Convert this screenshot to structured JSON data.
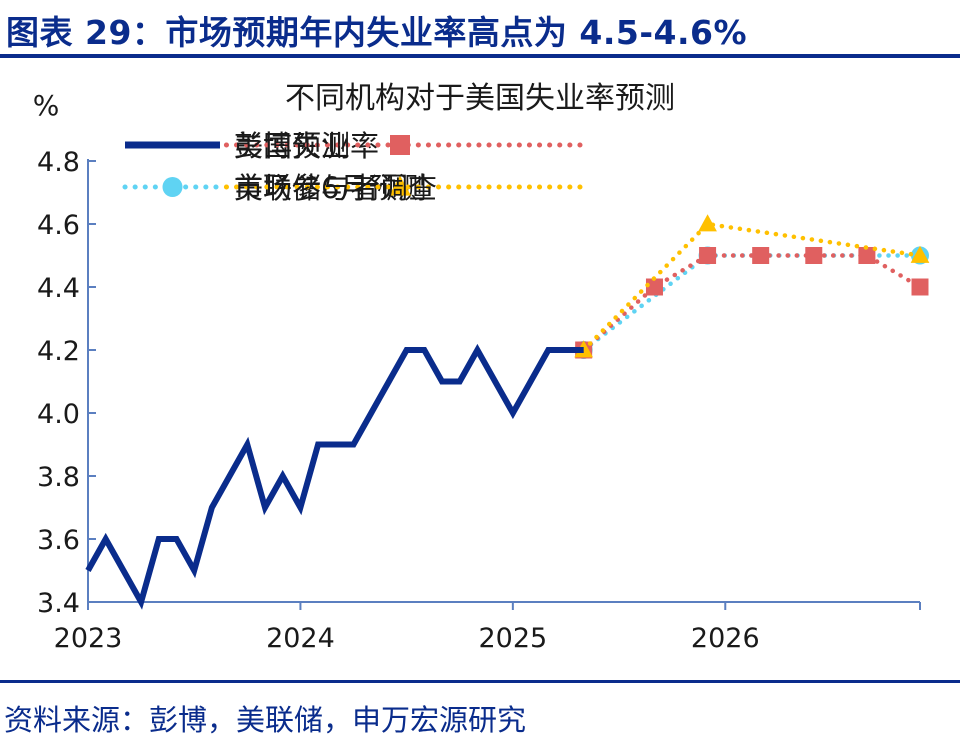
{
  "header": {
    "title": "图表 29：市场预期年内失业率高点为 4.5-4.6%"
  },
  "footer": {
    "source": "资料来源：彭博，美联储，申万宏源研究"
  },
  "chart_data": {
    "type": "line",
    "title": "不同机构对于美国失业率预测",
    "ylabel": "%",
    "ylim": [
      3.4,
      4.8
    ],
    "yticks": [
      "4.8",
      "4.6",
      "4.4",
      "4.2",
      "4.0",
      "3.8",
      "3.6",
      "3.4"
    ],
    "x_range": [
      "2023-01",
      "2026-12"
    ],
    "xticks": [
      "2023",
      "2024",
      "2025",
      "2026"
    ],
    "grid": false,
    "legend_position": "top",
    "series": [
      {
        "name": "美国失业率",
        "style": "solid",
        "marker": "none",
        "color": "#0a2c8c",
        "x": [
          "2023-01",
          "2023-02",
          "2023-03",
          "2023-04",
          "2023-05",
          "2023-06",
          "2023-07",
          "2023-08",
          "2023-09",
          "2023-10",
          "2023-11",
          "2023-12",
          "2024-01",
          "2024-02",
          "2024-03",
          "2024-04",
          "2024-05",
          "2024-06",
          "2024-07",
          "2024-08",
          "2024-09",
          "2024-10",
          "2024-11",
          "2024-12",
          "2025-01",
          "2025-02",
          "2025-03",
          "2025-04",
          "2025-05"
        ],
        "y": [
          3.5,
          3.6,
          3.5,
          3.4,
          3.6,
          3.6,
          3.5,
          3.7,
          3.8,
          3.9,
          3.7,
          3.8,
          3.7,
          3.9,
          3.9,
          3.9,
          4.0,
          4.1,
          4.2,
          4.2,
          4.1,
          4.1,
          4.2,
          4.1,
          4.0,
          4.1,
          4.2,
          4.2,
          4.2
        ]
      },
      {
        "name": "彭博预测",
        "style": "dotted",
        "marker": "square",
        "color": "#e06060",
        "x": [
          "2025-05",
          "2025-09",
          "2025-12",
          "2026-03",
          "2026-06",
          "2026-09",
          "2026-12"
        ],
        "y": [
          4.2,
          4.4,
          4.5,
          4.5,
          4.5,
          4.5,
          4.4
        ]
      },
      {
        "name": "美联储6月预测",
        "style": "dotted",
        "marker": "circle",
        "color": "#5fd3f3",
        "x": [
          "2025-05",
          "2025-12",
          "2026-12"
        ],
        "y": [
          4.2,
          4.5,
          4.5
        ]
      },
      {
        "name": "市场参与者调查",
        "style": "dotted",
        "marker": "triangle",
        "color": "#ffc000",
        "x": [
          "2025-05",
          "2025-12",
          "2026-12"
        ],
        "y": [
          4.2,
          4.6,
          4.5
        ]
      }
    ]
  }
}
